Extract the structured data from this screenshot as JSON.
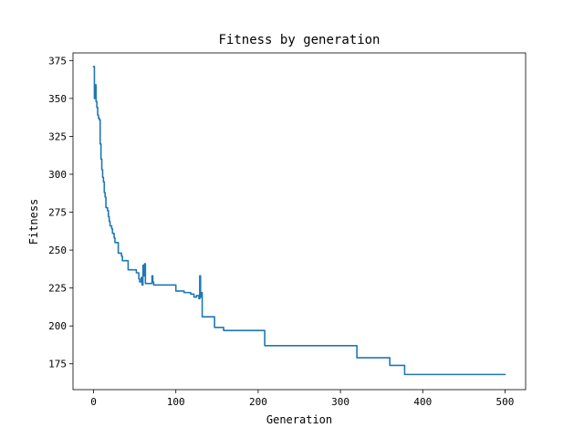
{
  "chart_data": {
    "type": "line",
    "title": "Fitness by generation",
    "xlabel": "Generation",
    "ylabel": "Fitness",
    "xlim": [
      -25,
      525
    ],
    "ylim": [
      158,
      380
    ],
    "xticks": [
      0,
      100,
      200,
      300,
      400,
      500
    ],
    "yticks": [
      175,
      200,
      225,
      250,
      275,
      300,
      325,
      350,
      375
    ],
    "grid": false,
    "series": [
      {
        "color": "#1f77b4",
        "x": [
          0,
          1,
          1,
          2,
          2,
          3,
          3,
          4,
          4,
          5,
          5,
          6,
          6,
          7,
          7,
          8,
          8,
          9,
          9,
          10,
          10,
          11,
          11,
          12,
          12,
          13,
          13,
          14,
          14,
          15,
          15,
          16,
          16,
          17,
          17,
          18,
          18,
          19,
          19,
          20,
          20,
          22,
          22,
          23,
          23,
          25,
          25,
          26,
          26,
          28,
          28,
          30,
          30,
          34,
          34,
          35,
          35,
          38,
          38,
          42,
          42,
          48,
          48,
          52,
          52,
          55,
          55,
          56,
          56,
          58,
          58,
          59,
          59,
          60,
          60,
          61,
          61,
          62,
          62,
          63,
          63,
          64,
          64,
          65,
          65,
          66,
          66,
          70,
          70,
          71,
          71,
          72,
          72,
          73,
          73,
          74,
          74,
          75,
          75,
          76,
          76,
          80,
          80,
          90,
          90,
          100,
          100,
          102,
          102,
          110,
          110,
          116,
          116,
          118,
          118,
          122,
          122,
          125,
          125,
          128,
          128,
          129,
          129,
          130,
          130,
          131,
          131,
          132,
          132,
          147,
          147,
          158,
          158,
          205,
          205,
          208,
          208,
          280,
          280,
          320,
          320,
          360,
          360,
          378,
          378,
          500
        ],
        "y": [
          371,
          371,
          350,
          350,
          359,
          359,
          348,
          348,
          344,
          344,
          339,
          339,
          337,
          337,
          336,
          336,
          320,
          320,
          310,
          310,
          303,
          303,
          298,
          298,
          295,
          295,
          288,
          288,
          285,
          285,
          278,
          278,
          278,
          278,
          276,
          276,
          272,
          272,
          269,
          269,
          266,
          266,
          264,
          264,
          261,
          261,
          258,
          258,
          255,
          255,
          255,
          255,
          248,
          248,
          246,
          246,
          243,
          243,
          243,
          243,
          237,
          237,
          237,
          237,
          235,
          235,
          231,
          231,
          229,
          229,
          232,
          232,
          227,
          227,
          240,
          240,
          233,
          233,
          241,
          241,
          228,
          228,
          228,
          228,
          228,
          228,
          228,
          228,
          228,
          228,
          233,
          233,
          229,
          229,
          227,
          227,
          227,
          227,
          227,
          227,
          227,
          227,
          227,
          227,
          227,
          227,
          223,
          223,
          223,
          223,
          222,
          222,
          222,
          222,
          221,
          221,
          219,
          219,
          220,
          220,
          218,
          218,
          233,
          233,
          219,
          219,
          222,
          222,
          206,
          206,
          199,
          199,
          197,
          197,
          197,
          197,
          187,
          187,
          187,
          187,
          179,
          179,
          174,
          174,
          168,
          168
        ]
      }
    ]
  }
}
